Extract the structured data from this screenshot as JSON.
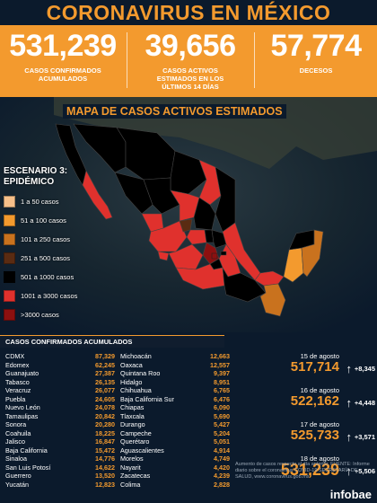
{
  "title": "CORONAVIRUS EN MÉXICO",
  "stats": [
    {
      "value": "531,239",
      "label": "CASOS CONFIRMADOS ACUMULADOS"
    },
    {
      "value": "39,656",
      "label": "CASOS ACTIVOS ESTIMADOS EN LOS ÚLTIMOS 14 DÍAS"
    },
    {
      "value": "57,774",
      "label": "DECESOS"
    }
  ],
  "map_title": "MAPA DE CASOS ACTIVOS ESTIMADOS",
  "legend": {
    "title_line1": "ESCENARIO 3:",
    "title_line2": "EPIDÉMICO",
    "items": [
      {
        "label": "1 a 50 casos",
        "color": "#f7c08a"
      },
      {
        "label": "51 a 100 casos",
        "color": "#f39a2e"
      },
      {
        "label": "101 a 250 casos",
        "color": "#c9721e"
      },
      {
        "label": "251 a 500 casos",
        "color": "#5a2b12"
      },
      {
        "label": "501 a 1000 casos",
        "color": "#000000"
      },
      {
        "label": "1001 a 3000 casos",
        "color": "#e0312d"
      },
      {
        "label": ">3000 casos",
        "color": "#8c1010"
      }
    ]
  },
  "table": {
    "header": "CASOS CONFIRMADOS ACUMULADOS",
    "left": [
      {
        "state": "CDMX",
        "value": "87,329"
      },
      {
        "state": "Edomex",
        "value": "62,245"
      },
      {
        "state": "Guanajuato",
        "value": "27,387"
      },
      {
        "state": "Tabasco",
        "value": "26,135"
      },
      {
        "state": "Veracruz",
        "value": "26,077"
      },
      {
        "state": "Puebla",
        "value": "24,605"
      },
      {
        "state": "Nuevo León",
        "value": "24,078"
      },
      {
        "state": "Tamaulipas",
        "value": "20,842"
      },
      {
        "state": "Sonora",
        "value": "20,280"
      },
      {
        "state": "Coahuila",
        "value": "18,225"
      },
      {
        "state": "Jalisco",
        "value": "16,847"
      },
      {
        "state": "Baja California",
        "value": "15,472"
      },
      {
        "state": "Sinaloa",
        "value": "14,776"
      },
      {
        "state": "San Luis Potosí",
        "value": "14,622"
      },
      {
        "state": "Guerrero",
        "value": "13,520"
      },
      {
        "state": "Yucatán",
        "value": "12,823"
      }
    ],
    "right": [
      {
        "state": "Michoacán",
        "value": "12,663"
      },
      {
        "state": "Oaxaca",
        "value": "12,557"
      },
      {
        "state": "Quintana Roo",
        "value": "9,397"
      },
      {
        "state": "Hidalgo",
        "value": "8,951"
      },
      {
        "state": "Chihuahua",
        "value": "6,765"
      },
      {
        "state": "Baja California Sur",
        "value": "6,476"
      },
      {
        "state": "Chiapas",
        "value": "6,090"
      },
      {
        "state": "Tlaxcala",
        "value": "5,690"
      },
      {
        "state": "Durango",
        "value": "5,427"
      },
      {
        "state": "Campeche",
        "value": "5,204"
      },
      {
        "state": "Querétaro",
        "value": "5,051"
      },
      {
        "state": "Aguascalientes",
        "value": "4,914"
      },
      {
        "state": "Morelos",
        "value": "4,749"
      },
      {
        "state": "Nayarit",
        "value": "4,420"
      },
      {
        "state": "Zacatecas",
        "value": "4,239"
      },
      {
        "state": "Colima",
        "value": "2,828"
      }
    ]
  },
  "timeline": [
    {
      "date": "15 de agosto",
      "value": "517,714",
      "inc": "+8,345"
    },
    {
      "date": "16 de agosto",
      "value": "522,162",
      "inc": "+4,448"
    },
    {
      "date": "17 de agosto",
      "value": "525,733",
      "inc": "+3,571"
    },
    {
      "date": "18 de agosto",
      "value": "531,239",
      "inc": "+5,506"
    }
  ],
  "note": "Aumento de casos respecto al día anterior. FUENTE: Informe diario sobre el coronavirus COVID-19 SECRETARÍA DE SALUD, www.coronavirus.gob.mx",
  "brand": "infobae"
}
